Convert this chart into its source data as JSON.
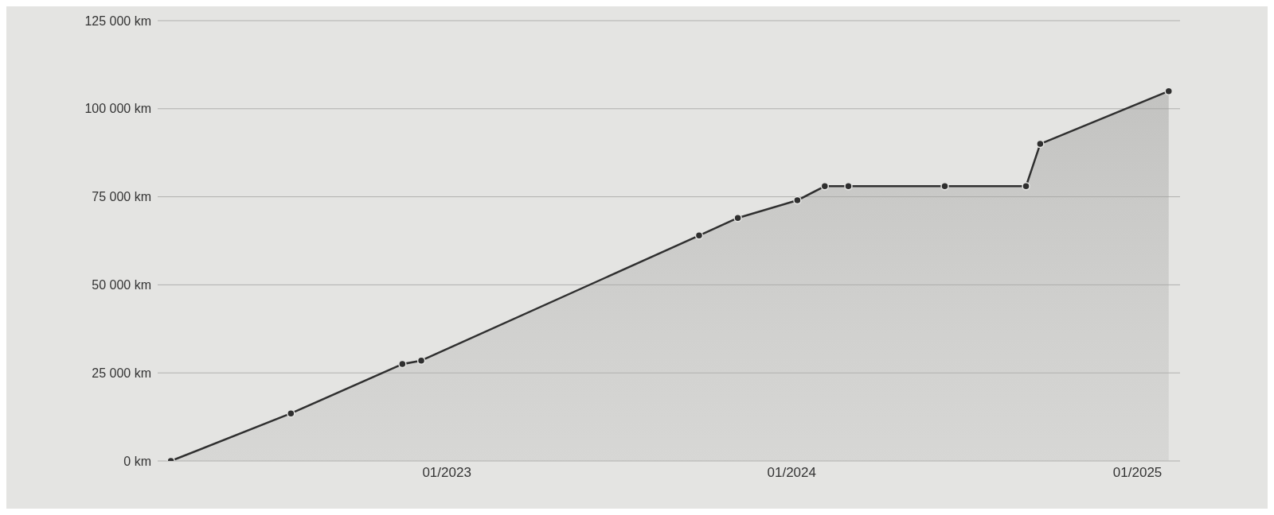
{
  "chart_data": {
    "type": "area",
    "x": [
      "2022-03-15",
      "2022-07-20",
      "2022-11-15",
      "2022-12-05",
      "2023-09-25",
      "2023-11-05",
      "2024-01-07",
      "2024-02-05",
      "2024-03-01",
      "2024-06-11",
      "2024-09-05",
      "2024-09-20",
      "2025-02-03"
    ],
    "series": [
      {
        "color": "#2f2f2f",
        "values": [
          0,
          13500,
          27500,
          28500,
          64000,
          69000,
          74000,
          78000,
          78000,
          78000,
          78000,
          90000,
          105000
        ]
      }
    ],
    "xlim": [
      "2022-03-01",
      "2025-02-15"
    ],
    "xticks": [
      {
        "value": "2023-01-01",
        "label": "01/2023"
      },
      {
        "value": "2024-01-01",
        "label": "01/2024"
      },
      {
        "value": "2025-01-01",
        "label": "01/2025"
      }
    ],
    "ylim": [
      0,
      125000
    ],
    "yticks": [
      {
        "value": 0,
        "label": "0 km"
      },
      {
        "value": 25000,
        "label": "25 000 km"
      },
      {
        "value": 50000,
        "label": "50 000 km"
      },
      {
        "value": 75000,
        "label": "75 000 km"
      },
      {
        "value": 100000,
        "label": "100 000 km"
      },
      {
        "value": 125000,
        "label": "125 000 km"
      }
    ],
    "grid": "y",
    "marker": "circle",
    "line_style": "solid"
  }
}
